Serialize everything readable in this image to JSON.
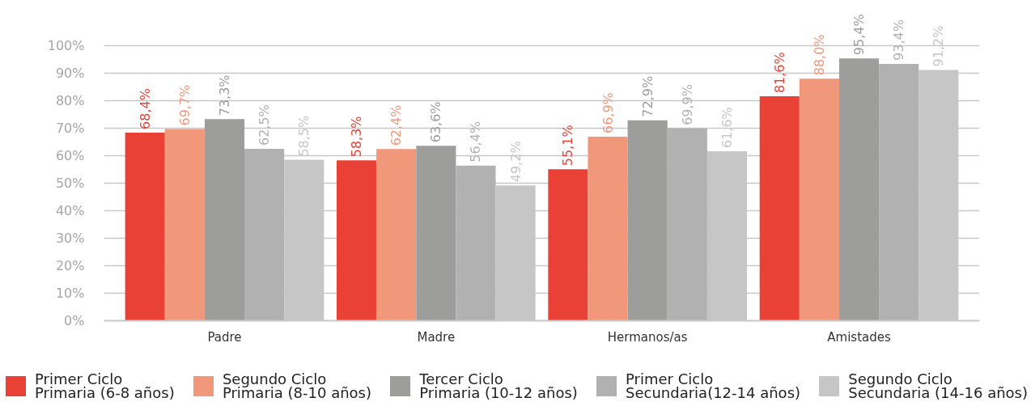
{
  "chart_data": {
    "type": "bar",
    "categories": [
      "Padre",
      "Madre",
      "Hermanos/as",
      "Amistades"
    ],
    "series": [
      {
        "name": "Primer Ciclo\nPrimaria (6-8 años)",
        "color": "#e94135",
        "values": [
          68.4,
          58.3,
          55.1,
          81.6
        ],
        "value_labels": [
          "68,4%",
          "58,3%",
          "55,1%",
          "81,6%"
        ]
      },
      {
        "name": "Segundo Ciclo\nPrimaria (8-10 años)",
        "color": "#f1987b",
        "values": [
          69.7,
          62.4,
          66.9,
          88.0
        ],
        "value_labels": [
          "69,7%",
          "62,4%",
          "66,9%",
          "88,0%"
        ]
      },
      {
        "name": "Tercer Ciclo\nPrimaria (10-12 años)",
        "color": "#9d9d9c",
        "values": [
          73.3,
          63.6,
          72.9,
          95.4
        ],
        "value_labels": [
          "73,3%",
          "63,6%",
          "72,9%",
          "95,4%"
        ]
      },
      {
        "name": "Primer Ciclo\nSecundaria(12-14 años)",
        "color": "#b1b1b1",
        "values": [
          62.5,
          56.4,
          69.9,
          93.4
        ],
        "value_labels": [
          "62,5%",
          "56,4%",
          "69,9%",
          "93,4%"
        ]
      },
      {
        "name": "Segundo Ciclo\nSecundaria (14-16 años)",
        "color": "#c6c6c6",
        "values": [
          58.5,
          49.2,
          61.6,
          91.2
        ],
        "value_labels": [
          "58,5%",
          "49,2%",
          "61,6%",
          "91,2%"
        ]
      }
    ],
    "ylim": [
      0,
      100
    ],
    "yticks": [
      {
        "value": 0,
        "label": "0%"
      },
      {
        "value": 10,
        "label": "10%"
      },
      {
        "value": 20,
        "label": "20%"
      },
      {
        "value": 30,
        "label": "30%"
      },
      {
        "value": 40,
        "label": "40%"
      },
      {
        "value": 50,
        "label": "50%"
      },
      {
        "value": 60,
        "label": "60%"
      },
      {
        "value": 70,
        "label": "70%"
      },
      {
        "value": 80,
        "label": "80%"
      },
      {
        "value": 90,
        "label": "90%"
      },
      {
        "value": 100,
        "label": "100%"
      }
    ],
    "grid": "y",
    "legend": "bottom"
  }
}
